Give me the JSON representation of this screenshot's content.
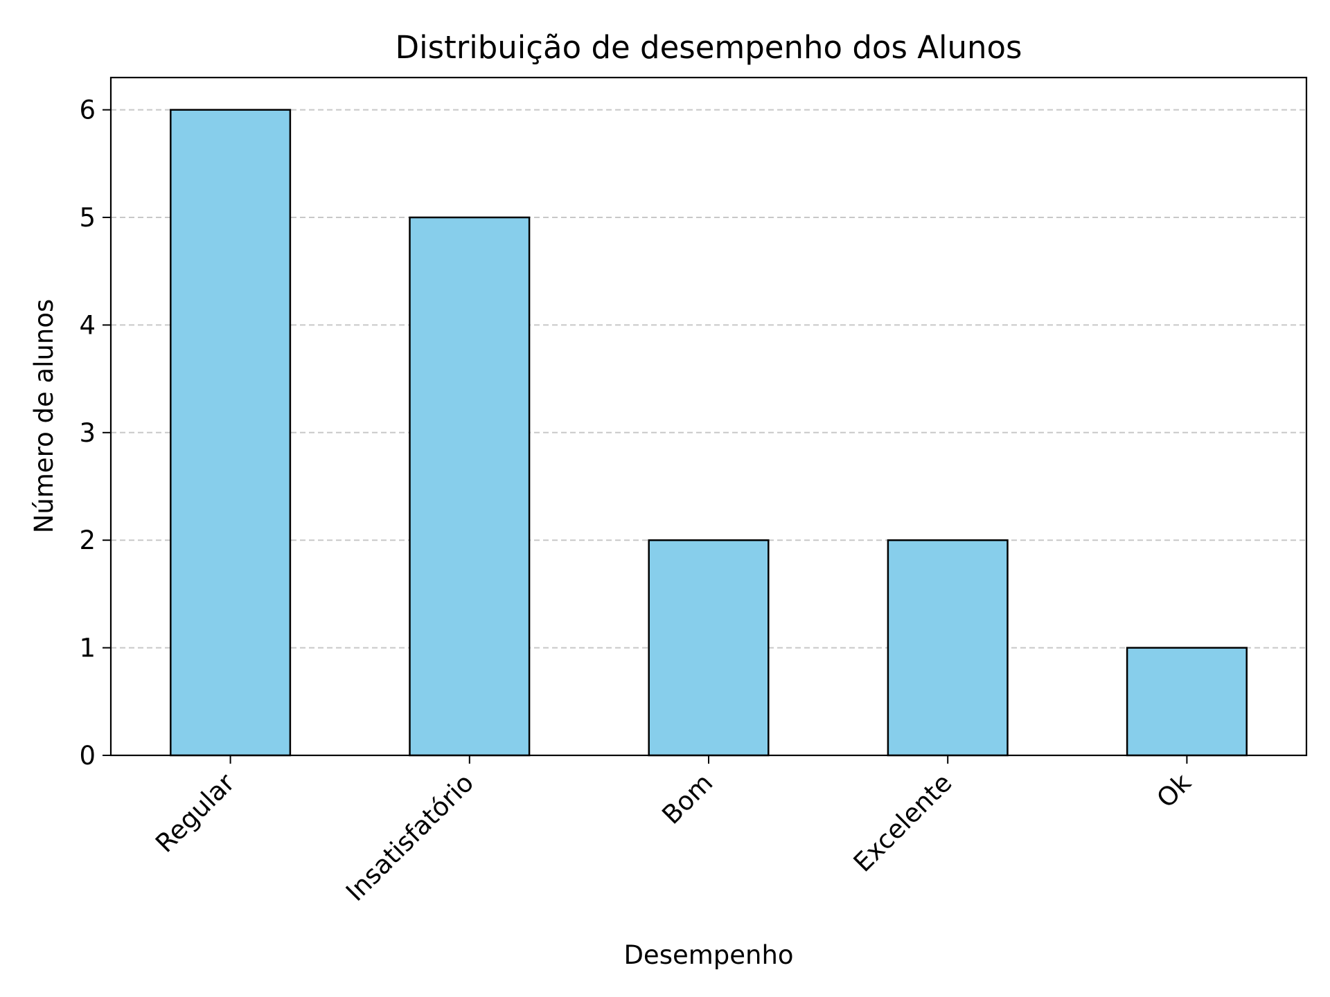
{
  "chart_data": {
    "type": "bar",
    "title": "Distribuição de desempenho dos Alunos",
    "xlabel": "Desempenho",
    "ylabel": "Número de alunos",
    "categories": [
      "Regular",
      "Insatisfatório",
      "Bom",
      "Excelente",
      "Ok"
    ],
    "values": [
      6,
      5,
      2,
      2,
      1
    ],
    "ylim": [
      0,
      6.3
    ],
    "yticks": [
      0,
      1,
      2,
      3,
      4,
      5,
      6
    ],
    "grid": "y-dashed",
    "legend": "none",
    "colors": {
      "bar": "#87ceeb",
      "edge": "#000000",
      "grid": "#c8c8c8"
    }
  }
}
